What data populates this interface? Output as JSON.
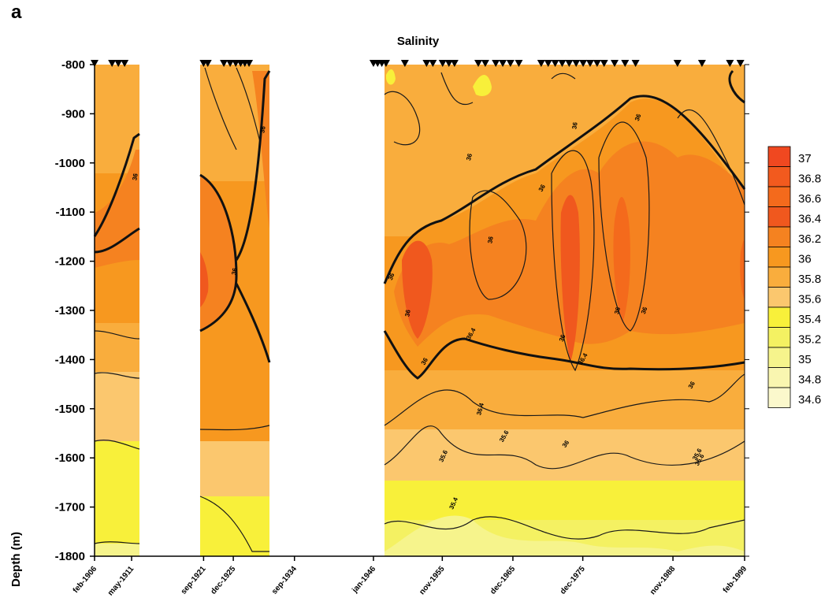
{
  "panel_label": "a",
  "chart_data": {
    "type": "contour",
    "title": "Salinity",
    "xlabel": "",
    "ylabel": "Depth (m)",
    "ylim": [
      -1800,
      -800
    ],
    "y_ticks": [
      "-800",
      "-900",
      "-1000",
      "-1100",
      "-1200",
      "-1300",
      "-1400",
      "-1500",
      "-1600",
      "-1700",
      "-1800"
    ],
    "x_ticks": [
      {
        "label": "feb-1906",
        "year": 1906.1
      },
      {
        "label": "may-1911",
        "year": 1911.4
      },
      {
        "label": "sep-1921",
        "year": 1921.7
      },
      {
        "label": "dec-1925",
        "year": 1925.95
      },
      {
        "label": "sep-1934",
        "year": 1934.7
      },
      {
        "label": "jan-1946",
        "year": 1946.0
      },
      {
        "label": "nov-1955",
        "year": 1955.85
      },
      {
        "label": "dec-1965",
        "year": 1965.95
      },
      {
        "label": "dec-1975",
        "year": 1975.95
      },
      {
        "label": "nov-1988",
        "year": 1988.85
      },
      {
        "label": "feb-1999",
        "year": 1999.1
      }
    ],
    "data_blocks": [
      {
        "from": 1906.1,
        "to": 1911.4
      },
      {
        "from": 1921.7,
        "to": 1928.5
      },
      {
        "from": 1946.0,
        "to": 1999.1
      }
    ],
    "legend": {
      "labels": [
        "37",
        "36.8",
        "36.6",
        "36.4",
        "36.2",
        "36",
        "35.8",
        "35.6",
        "35.4",
        "35.2",
        "35",
        "34.8",
        "34.6"
      ],
      "colors": [
        "#f04820",
        "#f25a1e",
        "#f46a1c",
        "#f0581e",
        "#f58220",
        "#f7981f",
        "#f9ad3d",
        "#fbc76e",
        "#f8f03a",
        "#f4f162",
        "#f6f48c",
        "#f9f6b0",
        "#fbf8cc"
      ]
    },
    "contour_labels": [
      "36",
      "36",
      "36",
      "36",
      "36",
      "36",
      "36",
      "36",
      "36",
      "36",
      "36.4",
      "36",
      "36",
      "36.4",
      "36",
      "36",
      "36",
      "36.4",
      "36",
      "35.6",
      "35.6",
      "35.4",
      "35.6",
      "35.6"
    ]
  }
}
